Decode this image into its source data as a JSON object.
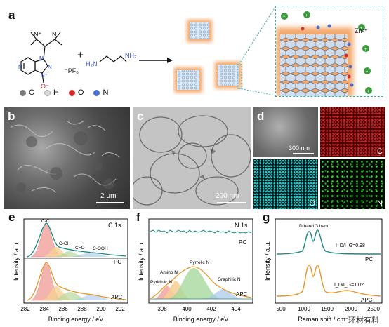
{
  "panel_a": {
    "letter": "a",
    "pf6_label": "⁻PF₆",
    "ethylenediamine_left": "H₂N",
    "ethylenediamine_right": "NH₂",
    "plus": "+",
    "zn_label": "Zn²⁺",
    "legend": [
      {
        "symbol": "C",
        "color": "#7a7a7a"
      },
      {
        "symbol": "H",
        "color": "#d9d9d9"
      },
      {
        "symbol": "O",
        "color": "#d42a2a"
      },
      {
        "symbol": "N",
        "color": "#4a6fd1"
      }
    ]
  },
  "panel_b": {
    "letter": "b",
    "scalebar": "2 μm"
  },
  "panel_c": {
    "letter": "c",
    "scalebar": "200 nm"
  },
  "panel_d": {
    "letter": "d",
    "scalebar": "300 nm",
    "maps": [
      {
        "label": "C",
        "color": "#e02020"
      },
      {
        "label": "O",
        "color": "#20c8c8"
      },
      {
        "label": "N",
        "color": "#30e030"
      }
    ]
  },
  "chart_data": [
    {
      "type": "line",
      "panel": "e",
      "title": "C 1s",
      "xlabel": "Binding energy / eV",
      "ylabel": "Intensity / a.u.",
      "xlim": [
        282,
        293
      ],
      "xticks": [
        "282",
        "284",
        "286",
        "288",
        "290",
        "292"
      ],
      "series": [
        {
          "name": "PC",
          "peak_labels": [
            "C-C",
            "C-OH",
            "C=O",
            "C-OOH"
          ],
          "peak_positions": [
            284.8,
            286.3,
            287.6,
            289.6
          ]
        },
        {
          "name": "APC"
        }
      ]
    },
    {
      "type": "line",
      "panel": "f",
      "title": "N 1s",
      "xlabel": "Binding energy / eV",
      "ylabel": "Intensity / a.u.",
      "xlim": [
        396.5,
        405
      ],
      "xticks": [
        "398",
        "400",
        "402",
        "404"
      ],
      "series": [
        {
          "name": "PC"
        },
        {
          "name": "APC",
          "peak_labels": [
            "Pyridinic N",
            "Amino N",
            "Pyrrolic N",
            "Graphitic N"
          ],
          "peak_positions": [
            398.3,
            399.2,
            400.4,
            402.4
          ]
        }
      ]
    },
    {
      "type": "line",
      "panel": "g",
      "xlabel": "Raman shift / cm⁻¹",
      "ylabel": "Intensity / a.u.",
      "xlim": [
        400,
        2600
      ],
      "xticks": [
        "500",
        "1000",
        "1500",
        "2000",
        "2500"
      ],
      "band_labels": [
        "D band",
        "G band"
      ],
      "band_positions": [
        1345,
        1590
      ],
      "series": [
        {
          "name": "PC",
          "color": "#1f8a84",
          "ratio": "I_D/I_G=0.98"
        },
        {
          "name": "APC",
          "color": "#e8962c",
          "ratio": "I_D/I_G=1.02"
        }
      ]
    }
  ],
  "watermark": "环材有料"
}
